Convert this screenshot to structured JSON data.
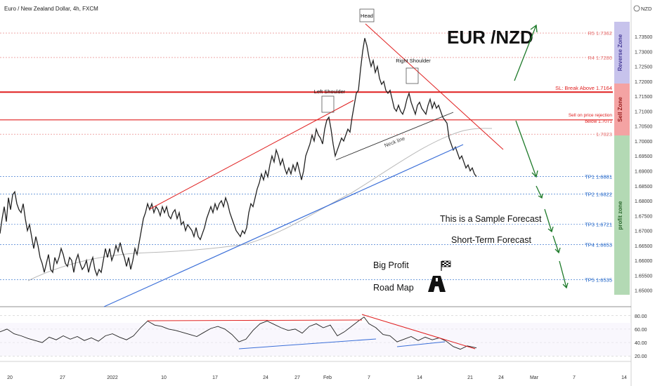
{
  "header": {
    "title": "Euro / New Zealand Dollar, 4h, FXCM",
    "currency": "NZD"
  },
  "annotations": {
    "head": "Head",
    "left_shoulder": "Left Shoulder",
    "right_shoulder": "Right Shoulder",
    "neck_line": "Neck line",
    "pair_title": "EUR /NZD",
    "sample": "This is a Sample Forecast",
    "short_term": "Short-Term Forecast",
    "big_profit": "Big Profit",
    "road_map": "Road Map",
    "sl_label": "SL: Break Above 1.7164",
    "sell_line1": "Sell on price rejection",
    "sell_line2": "below 1.7071",
    "reverse_zone": "Reverse Zone",
    "sell_zone": "Sell Zone",
    "profit_zone": "profit zone"
  },
  "levels": [
    {
      "label": "R5 1.7362",
      "price": 1.7362,
      "color": "#e57373"
    },
    {
      "label": "R4 1.7280",
      "price": 1.728,
      "color": "#e57373"
    },
    {
      "label": "1.7023",
      "price": 1.7023,
      "color": "#e57373"
    },
    {
      "label": "TP1 1.6881",
      "price": 1.6881,
      "color": "#1e63c7"
    },
    {
      "label": "TP2 1.6822",
      "price": 1.6822,
      "color": "#1e63c7"
    },
    {
      "label": "TP3 1.6721",
      "price": 1.6721,
      "color": "#1e63c7"
    },
    {
      "label": "TP4 1.6653",
      "price": 1.6653,
      "color": "#1e63c7"
    },
    {
      "label": "TP5 1.6535",
      "price": 1.6535,
      "color": "#1e63c7"
    }
  ],
  "chart_data": {
    "type": "line",
    "title": "Euro / New Zealand Dollar, 4h, FXCM",
    "x_ticks": [
      "20",
      "27",
      "2022",
      "10",
      "17",
      "24",
      "27",
      "Feb",
      "7",
      "14",
      "21",
      "24",
      "Mar",
      "7",
      "14"
    ],
    "y_ticks": [
      "1.73500",
      "1.73000",
      "1.72500",
      "1.72000",
      "1.71500",
      "1.71000",
      "1.70500",
      "1.70000",
      "1.69500",
      "1.69000",
      "1.68500",
      "1.68000",
      "1.67500",
      "1.67000",
      "1.66500",
      "1.66000",
      "1.65500",
      "1.65000"
    ],
    "ylim": [
      1.6485,
      1.7395
    ],
    "sl_price": 1.7164,
    "sell_price": 1.7071,
    "price_series": [
      {
        "x": 0,
        "y": 1.669
      },
      {
        "x": 3,
        "y": 1.674
      },
      {
        "x": 6,
        "y": 1.678
      },
      {
        "x": 9,
        "y": 1.673
      },
      {
        "x": 12,
        "y": 1.681
      },
      {
        "x": 15,
        "y": 1.677
      },
      {
        "x": 18,
        "y": 1.682
      },
      {
        "x": 21,
        "y": 1.683
      },
      {
        "x": 24,
        "y": 1.679
      },
      {
        "x": 27,
        "y": 1.677
      },
      {
        "x": 30,
        "y": 1.676
      },
      {
        "x": 33,
        "y": 1.679
      },
      {
        "x": 36,
        "y": 1.674
      },
      {
        "x": 39,
        "y": 1.67
      },
      {
        "x": 42,
        "y": 1.672
      },
      {
        "x": 45,
        "y": 1.668
      },
      {
        "x": 48,
        "y": 1.664
      },
      {
        "x": 51,
        "y": 1.668
      },
      {
        "x": 54,
        "y": 1.665
      },
      {
        "x": 57,
        "y": 1.661
      },
      {
        "x": 60,
        "y": 1.659
      },
      {
        "x": 63,
        "y": 1.656
      },
      {
        "x": 66,
        "y": 1.659
      },
      {
        "x": 69,
        "y": 1.662
      },
      {
        "x": 72,
        "y": 1.657
      },
      {
        "x": 75,
        "y": 1.656
      },
      {
        "x": 78,
        "y": 1.661
      },
      {
        "x": 81,
        "y": 1.659
      },
      {
        "x": 84,
        "y": 1.661
      },
      {
        "x": 87,
        "y": 1.664
      },
      {
        "x": 90,
        "y": 1.662
      },
      {
        "x": 93,
        "y": 1.659
      },
      {
        "x": 96,
        "y": 1.658
      },
      {
        "x": 99,
        "y": 1.661
      },
      {
        "x": 102,
        "y": 1.66
      },
      {
        "x": 105,
        "y": 1.656
      },
      {
        "x": 108,
        "y": 1.66
      },
      {
        "x": 111,
        "y": 1.662
      },
      {
        "x": 114,
        "y": 1.659
      },
      {
        "x": 117,
        "y": 1.657
      },
      {
        "x": 120,
        "y": 1.658
      },
      {
        "x": 123,
        "y": 1.66
      },
      {
        "x": 126,
        "y": 1.656
      },
      {
        "x": 129,
        "y": 1.659
      },
      {
        "x": 132,
        "y": 1.661
      },
      {
        "x": 135,
        "y": 1.657
      },
      {
        "x": 138,
        "y": 1.655
      },
      {
        "x": 141,
        "y": 1.657
      },
      {
        "x": 144,
        "y": 1.656
      },
      {
        "x": 147,
        "y": 1.66
      },
      {
        "x": 150,
        "y": 1.664
      },
      {
        "x": 153,
        "y": 1.661
      },
      {
        "x": 156,
        "y": 1.664
      },
      {
        "x": 159,
        "y": 1.66
      },
      {
        "x": 162,
        "y": 1.662
      },
      {
        "x": 165,
        "y": 1.665
      },
      {
        "x": 168,
        "y": 1.663
      },
      {
        "x": 171,
        "y": 1.666
      },
      {
        "x": 174,
        "y": 1.663
      },
      {
        "x": 177,
        "y": 1.661
      },
      {
        "x": 180,
        "y": 1.658
      },
      {
        "x": 183,
        "y": 1.661
      },
      {
        "x": 186,
        "y": 1.657
      },
      {
        "x": 189,
        "y": 1.66
      },
      {
        "x": 192,
        "y": 1.664
      },
      {
        "x": 195,
        "y": 1.662
      },
      {
        "x": 198,
        "y": 1.666
      },
      {
        "x": 201,
        "y": 1.67
      },
      {
        "x": 204,
        "y": 1.674
      },
      {
        "x": 207,
        "y": 1.676
      },
      {
        "x": 210,
        "y": 1.679
      },
      {
        "x": 213,
        "y": 1.677
      },
      {
        "x": 216,
        "y": 1.679
      },
      {
        "x": 219,
        "y": 1.676
      },
      {
        "x": 222,
        "y": 1.678
      },
      {
        "x": 225,
        "y": 1.677
      },
      {
        "x": 228,
        "y": 1.675
      },
      {
        "x": 231,
        "y": 1.678
      },
      {
        "x": 234,
        "y": 1.676
      },
      {
        "x": 237,
        "y": 1.678
      },
      {
        "x": 240,
        "y": 1.675
      },
      {
        "x": 243,
        "y": 1.674
      },
      {
        "x": 246,
        "y": 1.676
      },
      {
        "x": 249,
        "y": 1.677
      },
      {
        "x": 252,
        "y": 1.674
      },
      {
        "x": 255,
        "y": 1.676
      },
      {
        "x": 258,
        "y": 1.672
      },
      {
        "x": 261,
        "y": 1.673
      },
      {
        "x": 264,
        "y": 1.67
      },
      {
        "x": 267,
        "y": 1.672
      },
      {
        "x": 270,
        "y": 1.671
      },
      {
        "x": 273,
        "y": 1.67
      },
      {
        "x": 276,
        "y": 1.668
      },
      {
        "x": 279,
        "y": 1.671
      },
      {
        "x": 282,
        "y": 1.668
      },
      {
        "x": 285,
        "y": 1.667
      },
      {
        "x": 288,
        "y": 1.669
      },
      {
        "x": 291,
        "y": 1.671
      },
      {
        "x": 294,
        "y": 1.674
      },
      {
        "x": 297,
        "y": 1.676
      },
      {
        "x": 300,
        "y": 1.678
      },
      {
        "x": 303,
        "y": 1.676
      },
      {
        "x": 306,
        "y": 1.679
      },
      {
        "x": 309,
        "y": 1.677
      },
      {
        "x": 312,
        "y": 1.679
      },
      {
        "x": 315,
        "y": 1.68
      },
      {
        "x": 318,
        "y": 1.678
      },
      {
        "x": 321,
        "y": 1.681
      },
      {
        "x": 324,
        "y": 1.679
      },
      {
        "x": 327,
        "y": 1.676
      },
      {
        "x": 330,
        "y": 1.674
      },
      {
        "x": 333,
        "y": 1.672
      },
      {
        "x": 336,
        "y": 1.67
      },
      {
        "x": 339,
        "y": 1.669
      },
      {
        "x": 342,
        "y": 1.668
      },
      {
        "x": 345,
        "y": 1.67
      },
      {
        "x": 348,
        "y": 1.669
      },
      {
        "x": 351,
        "y": 1.671
      },
      {
        "x": 354,
        "y": 1.676
      },
      {
        "x": 357,
        "y": 1.679
      },
      {
        "x": 360,
        "y": 1.678
      },
      {
        "x": 363,
        "y": 1.681
      },
      {
        "x": 366,
        "y": 1.684
      },
      {
        "x": 369,
        "y": 1.686
      },
      {
        "x": 372,
        "y": 1.689
      },
      {
        "x": 375,
        "y": 1.687
      },
      {
        "x": 378,
        "y": 1.69
      },
      {
        "x": 381,
        "y": 1.688
      },
      {
        "x": 384,
        "y": 1.692
      },
      {
        "x": 387,
        "y": 1.695
      },
      {
        "x": 390,
        "y": 1.693
      },
      {
        "x": 393,
        "y": 1.697
      },
      {
        "x": 396,
        "y": 1.695
      },
      {
        "x": 399,
        "y": 1.692
      },
      {
        "x": 402,
        "y": 1.694
      },
      {
        "x": 405,
        "y": 1.691
      },
      {
        "x": 408,
        "y": 1.689
      },
      {
        "x": 411,
        "y": 1.691
      },
      {
        "x": 414,
        "y": 1.689
      },
      {
        "x": 417,
        "y": 1.692
      },
      {
        "x": 420,
        "y": 1.69
      },
      {
        "x": 423,
        "y": 1.693
      },
      {
        "x": 426,
        "y": 1.69
      },
      {
        "x": 429,
        "y": 1.687
      },
      {
        "x": 432,
        "y": 1.69
      },
      {
        "x": 435,
        "y": 1.695
      },
      {
        "x": 438,
        "y": 1.697
      },
      {
        "x": 441,
        "y": 1.699
      },
      {
        "x": 444,
        "y": 1.702
      },
      {
        "x": 447,
        "y": 1.7
      },
      {
        "x": 450,
        "y": 1.704
      },
      {
        "x": 453,
        "y": 1.702
      },
      {
        "x": 456,
        "y": 1.701
      },
      {
        "x": 459,
        "y": 1.699
      },
      {
        "x": 462,
        "y": 1.704
      },
      {
        "x": 465,
        "y": 1.707
      },
      {
        "x": 468,
        "y": 1.708
      },
      {
        "x": 471,
        "y": 1.704
      },
      {
        "x": 474,
        "y": 1.699
      },
      {
        "x": 477,
        "y": 1.695
      },
      {
        "x": 480,
        "y": 1.697
      },
      {
        "x": 483,
        "y": 1.699
      },
      {
        "x": 486,
        "y": 1.701
      },
      {
        "x": 489,
        "y": 1.7
      },
      {
        "x": 492,
        "y": 1.702
      },
      {
        "x": 495,
        "y": 1.704
      },
      {
        "x": 498,
        "y": 1.703
      },
      {
        "x": 501,
        "y": 1.708
      },
      {
        "x": 504,
        "y": 1.712
      },
      {
        "x": 507,
        "y": 1.716
      },
      {
        "x": 510,
        "y": 1.717
      },
      {
        "x": 513,
        "y": 1.724
      },
      {
        "x": 516,
        "y": 1.73
      },
      {
        "x": 519,
        "y": 1.7345
      },
      {
        "x": 522,
        "y": 1.732
      },
      {
        "x": 525,
        "y": 1.728
      },
      {
        "x": 528,
        "y": 1.725
      },
      {
        "x": 531,
        "y": 1.727
      },
      {
        "x": 534,
        "y": 1.723
      },
      {
        "x": 537,
        "y": 1.725
      },
      {
        "x": 540,
        "y": 1.721
      },
      {
        "x": 543,
        "y": 1.719
      },
      {
        "x": 546,
        "y": 1.72
      },
      {
        "x": 549,
        "y": 1.717
      },
      {
        "x": 552,
        "y": 1.716
      },
      {
        "x": 555,
        "y": 1.717
      },
      {
        "x": 558,
        "y": 1.714
      },
      {
        "x": 561,
        "y": 1.711
      },
      {
        "x": 564,
        "y": 1.71
      },
      {
        "x": 567,
        "y": 1.712
      },
      {
        "x": 570,
        "y": 1.71
      },
      {
        "x": 573,
        "y": 1.709
      },
      {
        "x": 576,
        "y": 1.711
      },
      {
        "x": 579,
        "y": 1.714
      },
      {
        "x": 582,
        "y": 1.716
      },
      {
        "x": 585,
        "y": 1.713
      },
      {
        "x": 588,
        "y": 1.711
      },
      {
        "x": 591,
        "y": 1.709
      },
      {
        "x": 594,
        "y": 1.712
      },
      {
        "x": 597,
        "y": 1.713
      },
      {
        "x": 600,
        "y": 1.711
      },
      {
        "x": 603,
        "y": 1.71
      },
      {
        "x": 606,
        "y": 1.709
      },
      {
        "x": 609,
        "y": 1.712
      },
      {
        "x": 612,
        "y": 1.714
      },
      {
        "x": 615,
        "y": 1.711
      },
      {
        "x": 618,
        "y": 1.713
      },
      {
        "x": 621,
        "y": 1.711
      },
      {
        "x": 624,
        "y": 1.712
      },
      {
        "x": 627,
        "y": 1.71
      },
      {
        "x": 630,
        "y": 1.708
      },
      {
        "x": 633,
        "y": 1.707
      },
      {
        "x": 636,
        "y": 1.706
      },
      {
        "x": 639,
        "y": 1.701
      },
      {
        "x": 642,
        "y": 1.699
      },
      {
        "x": 645,
        "y": 1.697
      },
      {
        "x": 648,
        "y": 1.698
      },
      {
        "x": 651,
        "y": 1.696
      },
      {
        "x": 654,
        "y": 1.694
      },
      {
        "x": 657,
        "y": 1.695
      },
      {
        "x": 660,
        "y": 1.693
      },
      {
        "x": 663,
        "y": 1.691
      },
      {
        "x": 666,
        "y": 1.692
      },
      {
        "x": 669,
        "y": 1.69
      },
      {
        "x": 672,
        "y": 1.691
      },
      {
        "x": 675,
        "y": 1.689
      },
      {
        "x": 678,
        "y": 1.6881
      }
    ],
    "rsi": {
      "ticks": [
        "80.00",
        "60.00",
        "40.00",
        "20.00"
      ],
      "ylim": [
        15,
        85
      ],
      "series": [
        {
          "x": 0,
          "y": 56
        },
        {
          "x": 10,
          "y": 60
        },
        {
          "x": 20,
          "y": 53
        },
        {
          "x": 30,
          "y": 50
        },
        {
          "x": 40,
          "y": 46
        },
        {
          "x": 50,
          "y": 43
        },
        {
          "x": 60,
          "y": 40
        },
        {
          "x": 70,
          "y": 48
        },
        {
          "x": 80,
          "y": 44
        },
        {
          "x": 90,
          "y": 50
        },
        {
          "x": 100,
          "y": 45
        },
        {
          "x": 110,
          "y": 49
        },
        {
          "x": 120,
          "y": 43
        },
        {
          "x": 130,
          "y": 47
        },
        {
          "x": 140,
          "y": 42
        },
        {
          "x": 150,
          "y": 50
        },
        {
          "x": 160,
          "y": 53
        },
        {
          "x": 170,
          "y": 48
        },
        {
          "x": 180,
          "y": 44
        },
        {
          "x": 190,
          "y": 50
        },
        {
          "x": 200,
          "y": 62
        },
        {
          "x": 210,
          "y": 72
        },
        {
          "x": 220,
          "y": 66
        },
        {
          "x": 230,
          "y": 64
        },
        {
          "x": 240,
          "y": 60
        },
        {
          "x": 250,
          "y": 58
        },
        {
          "x": 260,
          "y": 55
        },
        {
          "x": 270,
          "y": 52
        },
        {
          "x": 280,
          "y": 49
        },
        {
          "x": 290,
          "y": 55
        },
        {
          "x": 300,
          "y": 61
        },
        {
          "x": 310,
          "y": 64
        },
        {
          "x": 320,
          "y": 60
        },
        {
          "x": 330,
          "y": 52
        },
        {
          "x": 340,
          "y": 41
        },
        {
          "x": 350,
          "y": 45
        },
        {
          "x": 360,
          "y": 58
        },
        {
          "x": 370,
          "y": 68
        },
        {
          "x": 380,
          "y": 72
        },
        {
          "x": 390,
          "y": 67
        },
        {
          "x": 400,
          "y": 62
        },
        {
          "x": 410,
          "y": 58
        },
        {
          "x": 420,
          "y": 60
        },
        {
          "x": 430,
          "y": 54
        },
        {
          "x": 440,
          "y": 64
        },
        {
          "x": 450,
          "y": 68
        },
        {
          "x": 460,
          "y": 62
        },
        {
          "x": 470,
          "y": 66
        },
        {
          "x": 480,
          "y": 50
        },
        {
          "x": 490,
          "y": 56
        },
        {
          "x": 500,
          "y": 64
        },
        {
          "x": 510,
          "y": 72
        },
        {
          "x": 518,
          "y": 78
        },
        {
          "x": 525,
          "y": 68
        },
        {
          "x": 535,
          "y": 62
        },
        {
          "x": 545,
          "y": 52
        },
        {
          "x": 555,
          "y": 50
        },
        {
          "x": 565,
          "y": 41
        },
        {
          "x": 575,
          "y": 45
        },
        {
          "x": 585,
          "y": 49
        },
        {
          "x": 595,
          "y": 43
        },
        {
          "x": 605,
          "y": 48
        },
        {
          "x": 615,
          "y": 44
        },
        {
          "x": 625,
          "y": 47
        },
        {
          "x": 635,
          "y": 42
        },
        {
          "x": 645,
          "y": 34
        },
        {
          "x": 655,
          "y": 30
        },
        {
          "x": 665,
          "y": 35
        },
        {
          "x": 678,
          "y": 32
        }
      ]
    }
  }
}
